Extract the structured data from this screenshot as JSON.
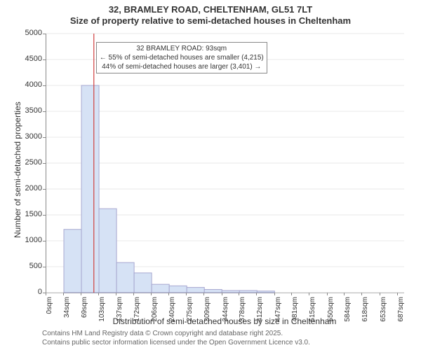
{
  "title_line1": "32, BRAMLEY ROAD, CHELTENHAM, GL51 7LT",
  "title_line2": "Size of property relative to semi-detached houses in Cheltenham",
  "y_axis_label": "Number of semi-detached properties",
  "x_axis_label": "Distribution of semi-detached houses by size in Cheltenham",
  "footer_line1": "Contains HM Land Registry data © Crown copyright and database right 2025.",
  "footer_line2": "Contains public sector information licensed under the Open Government Licence v3.0.",
  "annotation": {
    "line1": "32 BRAMLEY ROAD: 93sqm",
    "line2": "← 55% of semi-detached houses are smaller (4,215)",
    "line3": "44% of semi-detached houses are larger (3,401) →"
  },
  "chart": {
    "type": "histogram",
    "background_color": "#ffffff",
    "grid_color": "#e9e9e9",
    "bar_fill": "#d6e2f5",
    "bar_stroke": "#a8a8d0",
    "subject_line_color": "#d04040",
    "axis_color": "#888888",
    "title_fontsize": 13,
    "label_fontsize": 12,
    "tick_fontsize": 11,
    "xtick_fontsize": 10,
    "ylim": [
      0,
      5000
    ],
    "ytick_step": 500,
    "yticks": [
      0,
      500,
      1000,
      1500,
      2000,
      2500,
      3000,
      3500,
      4000,
      4500,
      5000
    ],
    "x_range_sqm": [
      0,
      700
    ],
    "xticks_sqm": [
      0,
      34,
      69,
      103,
      137,
      172,
      206,
      240,
      275,
      309,
      344,
      378,
      412,
      447,
      481,
      515,
      550,
      584,
      618,
      653,
      687
    ],
    "xtick_suffix": "sqm",
    "bin_width_sqm": 34.35,
    "subject_value_sqm": 93,
    "values": [
      0,
      1220,
      4000,
      1620,
      580,
      380,
      160,
      130,
      100,
      60,
      40,
      40,
      30,
      0,
      0,
      0,
      0,
      0,
      0,
      0
    ]
  }
}
